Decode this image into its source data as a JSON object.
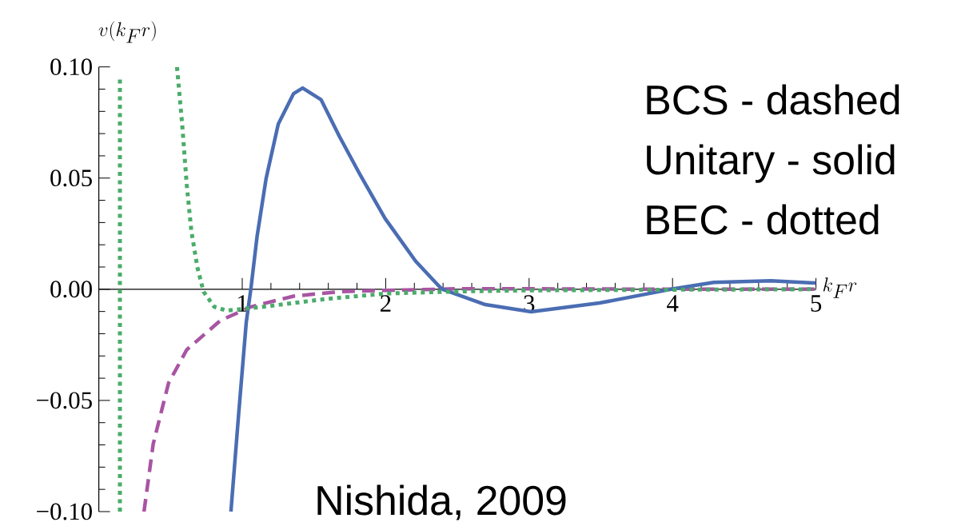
{
  "chart_data": {
    "type": "line",
    "xlabel": "k_F r",
    "ylabel": "v(k_F r)",
    "annotations": [
      "BCS - dashed",
      "Unitary - solid",
      "BEC - dotted",
      "Nishida, 2009"
    ],
    "xlim": [
      0,
      5
    ],
    "ylim": [
      -0.1,
      0.1
    ],
    "xticks": [
      1,
      2,
      3,
      4,
      5
    ],
    "yticks": [
      {
        "value": -0.1,
        "label": "−0.10"
      },
      {
        "value": -0.05,
        "label": "−0.05"
      },
      {
        "value": 0,
        "label": "0.00"
      },
      {
        "value": 0.05,
        "label": "0.05"
      },
      {
        "value": 0.1,
        "label": "0.10"
      }
    ],
    "series": [
      {
        "color": "#a855a3",
        "line_style": "dashed",
        "x": [
          0.315,
          0.379,
          0.486,
          0.613,
          0.847,
          1.06,
          1.358,
          1.677,
          2.0,
          2.5,
          3.0,
          3.5,
          4.0,
          5.0
        ],
        "values": [
          -0.1,
          -0.0696,
          -0.0422,
          -0.0272,
          -0.0141,
          -0.0079,
          -0.0031,
          -0.0011,
          -0.0005,
          0.0002,
          0.0002,
          0.0001,
          0.0,
          0.0
        ]
      },
      {
        "color": "#4a6db3",
        "line_style": "solid",
        "x": [
          0.921,
          0.975,
          1.028,
          1.06,
          1.103,
          1.166,
          1.251,
          1.358,
          1.421,
          1.549,
          1.677,
          1.826,
          1.996,
          2.209,
          2.377,
          2.397,
          2.695,
          3.014,
          3.49,
          3.99,
          4.288,
          4.686,
          5.0
        ],
        "values": [
          -0.1,
          -0.056,
          -0.0148,
          0.0001,
          0.0236,
          0.0497,
          0.0743,
          0.088,
          0.0905,
          0.0853,
          0.0688,
          0.051,
          0.0318,
          0.0126,
          0.001,
          0.0,
          -0.0069,
          -0.0101,
          -0.0062,
          0.0,
          0.0031,
          0.0038,
          0.0028
        ]
      },
      {
        "color": "#4aac6a",
        "line_style": "dotted",
        "x": [
          0.147,
          0.147,
          0.3,
          0.545,
          0.581,
          0.613,
          0.645,
          0.687,
          0.73,
          0.805,
          0.89,
          1.145,
          1.57,
          2.0,
          2.5,
          3.0,
          4.0,
          5.0
        ],
        "values": [
          -0.1,
          0.095,
          null,
          0.1,
          0.0743,
          0.0469,
          0.0263,
          0.0099,
          -0.0011,
          -0.0079,
          -0.0096,
          -0.0079,
          -0.0045,
          -0.0019,
          -0.001,
          -0.0005,
          -0.0002,
          0.0
        ]
      }
    ]
  }
}
